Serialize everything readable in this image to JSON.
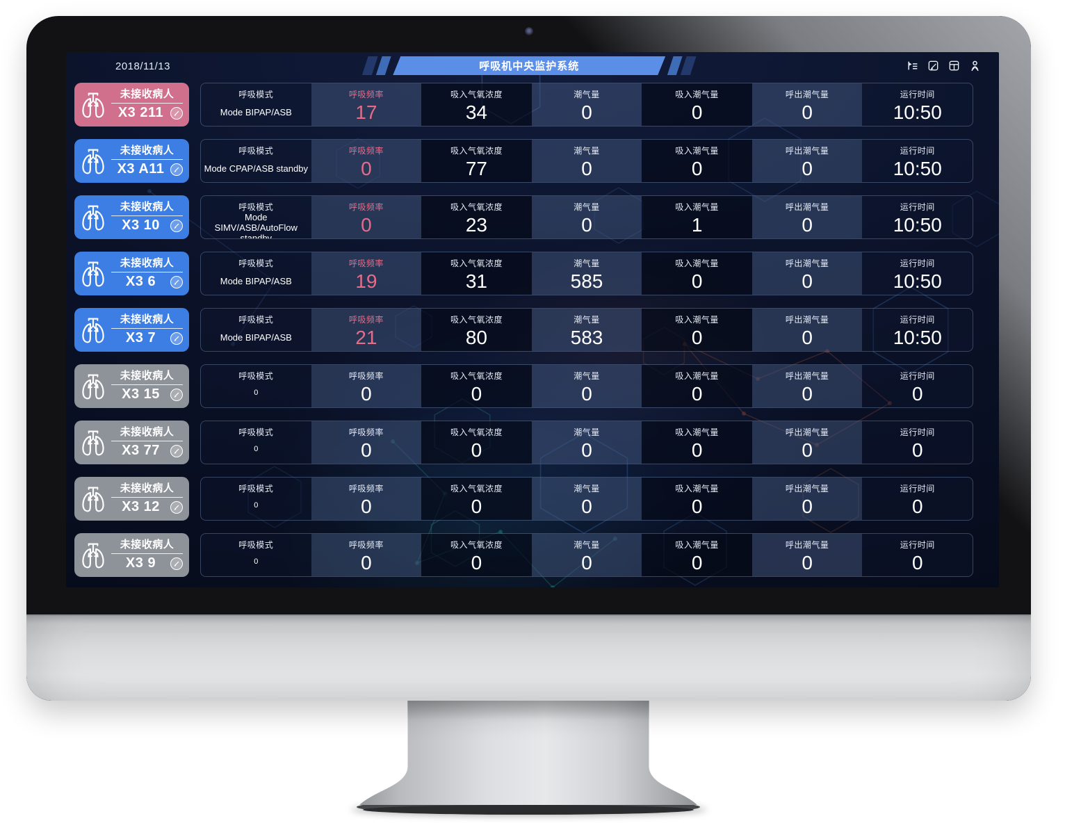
{
  "screen": {
    "date": "2018/11/13",
    "title": "呼吸机中央监护系统",
    "toolbar_icons": [
      "collapse-list-icon",
      "edit-note-icon",
      "layout-icon",
      "user-icon"
    ],
    "colors": {
      "banner_blue": "#5b8ee6",
      "stripe_blue": "#3e6cb6",
      "stripe_navy": "#23386b",
      "rate_pink": "#e26e8b",
      "badge_alarm": "#d0708c",
      "badge_active": "#3d7ee4",
      "badge_idle": "#8e9299"
    }
  },
  "columns": [
    {
      "key": "mode",
      "label": "呼吸模式"
    },
    {
      "key": "rate",
      "label": "呼吸频率"
    },
    {
      "key": "fio2",
      "label": "吸入气氧浓度"
    },
    {
      "key": "tidal-volume",
      "label": "潮气量"
    },
    {
      "key": "insp-tidal",
      "label": "吸入潮气量"
    },
    {
      "key": "exp-tidal",
      "label": "呼出潮气量"
    },
    {
      "key": "runtime",
      "label": "运行时间"
    }
  ],
  "rows": [
    {
      "status": "未接收病人",
      "bed": "X3 211",
      "state": "alarm",
      "values": [
        "Mode BIPAP/ASB",
        "17",
        "34",
        "0",
        "0",
        "0",
        "10:50"
      ]
    },
    {
      "status": "未接收病人",
      "bed": "X3 A11",
      "state": "active",
      "values": [
        "Mode CPAP/ASB standby",
        "0",
        "77",
        "0",
        "0",
        "0",
        "10:50"
      ]
    },
    {
      "status": "未接收病人",
      "bed": "X3 10",
      "state": "active",
      "values": [
        "Mode SIMV/ASB/AutoFlow standby",
        "0",
        "23",
        "0",
        "1",
        "0",
        "10:50"
      ]
    },
    {
      "status": "未接收病人",
      "bed": "X3 6",
      "state": "active",
      "values": [
        "Mode BIPAP/ASB",
        "19",
        "31",
        "585",
        "0",
        "0",
        "10:50"
      ]
    },
    {
      "status": "未接收病人",
      "bed": "X3 7",
      "state": "active",
      "values": [
        "Mode BIPAP/ASB",
        "21",
        "80",
        "583",
        "0",
        "0",
        "10:50"
      ]
    },
    {
      "status": "未接收病人",
      "bed": "X3 15",
      "state": "idle",
      "values": [
        "0",
        "0",
        "0",
        "0",
        "0",
        "0",
        "0"
      ]
    },
    {
      "status": "未接收病人",
      "bed": "X3 77",
      "state": "idle",
      "values": [
        "0",
        "0",
        "0",
        "0",
        "0",
        "0",
        "0"
      ]
    },
    {
      "status": "未接收病人",
      "bed": "X3 12",
      "state": "idle",
      "values": [
        "0",
        "0",
        "0",
        "0",
        "0",
        "0",
        "0"
      ]
    },
    {
      "status": "未接收病人",
      "bed": "X3 9",
      "state": "idle",
      "values": [
        "0",
        "0",
        "0",
        "0",
        "0",
        "0",
        "0"
      ]
    }
  ]
}
